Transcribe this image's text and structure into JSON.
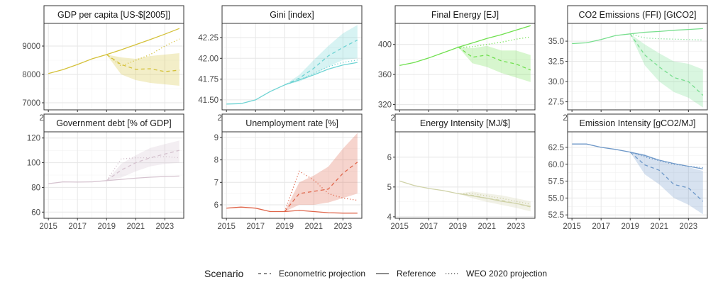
{
  "legend": {
    "title": "Scenario",
    "items": [
      {
        "label": "Econometric projection",
        "dash": "dashed"
      },
      {
        "label": "Reference",
        "dash": "solid"
      },
      {
        "label": "WEO 2020 projection",
        "dash": "dotted"
      }
    ]
  },
  "chart_data": [
    {
      "type": "line",
      "title": "GDP per capita [US-$[2005]]",
      "color": "#D4C13A",
      "ylim": [
        6750,
        9800
      ],
      "yticks": [
        7000,
        8000,
        9000
      ],
      "ytick_labels": [
        "7000",
        "8000",
        "9000"
      ],
      "xlim": [
        2014.7,
        2024.3
      ],
      "xticks": [
        2015,
        2017,
        2019,
        2021,
        2023
      ],
      "x": [
        2015,
        2016,
        2017,
        2018,
        2019,
        2020,
        2021,
        2022,
        2023,
        2024
      ],
      "reference": [
        8030,
        8170,
        8350,
        8550,
        8700,
        8870,
        9050,
        9230,
        9420,
        9620
      ],
      "econometric": {
        "x": [
          2019,
          2020,
          2021,
          2022,
          2023,
          2024
        ],
        "y": [
          8700,
          8350,
          8180,
          8200,
          8100,
          8150
        ],
        "lower": [
          8700,
          8000,
          7800,
          7700,
          7650,
          7600
        ],
        "upper": [
          8700,
          8600,
          8550,
          8650,
          8700,
          8750
        ]
      },
      "weo": {
        "x": [
          2019,
          2020,
          2021,
          2022,
          2023,
          2024
        ],
        "y": [
          8700,
          8300,
          8500,
          8700,
          9000,
          9250
        ]
      }
    },
    {
      "type": "line",
      "title": "Gini [index]",
      "color": "#6ED3D3",
      "ylim": [
        41.38,
        42.42
      ],
      "yticks": [
        41.5,
        41.75,
        42.0,
        42.25
      ],
      "ytick_labels": [
        "41.50",
        "41.75",
        "42.00",
        "42.25"
      ],
      "xlim": [
        2014.7,
        2024.3
      ],
      "xticks": [
        2015,
        2017,
        2019,
        2021,
        2023
      ],
      "x": [
        2015,
        2016,
        2017,
        2018,
        2019,
        2020,
        2021,
        2022,
        2023,
        2024
      ],
      "reference": [
        41.45,
        41.455,
        41.5,
        41.6,
        41.68,
        41.74,
        41.8,
        41.87,
        41.92,
        41.95
      ],
      "econometric": {
        "x": [
          2019,
          2020,
          2021,
          2022,
          2023,
          2024
        ],
        "y": [
          41.68,
          41.76,
          41.88,
          42.03,
          42.13,
          42.22
        ],
        "lower": [
          41.68,
          41.72,
          41.8,
          41.9,
          41.98,
          42.0
        ],
        "upper": [
          41.68,
          41.8,
          41.98,
          42.15,
          42.3,
          42.4
        ]
      },
      "weo": {
        "x": [
          2019,
          2020,
          2021,
          2022,
          2023,
          2024
        ],
        "y": [
          41.68,
          41.74,
          41.82,
          41.9,
          41.95,
          41.98
        ]
      }
    },
    {
      "type": "line",
      "title": "Final Energy [EJ]",
      "color": "#6FE04E",
      "ylim": [
        313,
        428
      ],
      "yticks": [
        320,
        360,
        400
      ],
      "ytick_labels": [
        "320",
        "360",
        "400"
      ],
      "xlim": [
        2014.7,
        2024.3
      ],
      "xticks": [
        2015,
        2017,
        2019,
        2021,
        2023
      ],
      "x": [
        2015,
        2016,
        2017,
        2018,
        2019,
        2020,
        2021,
        2022,
        2023,
        2024
      ],
      "reference": [
        372,
        376,
        382,
        389,
        396,
        402,
        408,
        413,
        419,
        425
      ],
      "econometric": {
        "x": [
          2019,
          2020,
          2021,
          2022,
          2023,
          2024
        ],
        "y": [
          397,
          383,
          386,
          378,
          374,
          366
        ],
        "lower": [
          397,
          375,
          370,
          362,
          356,
          350
        ],
        "upper": [
          397,
          395,
          398,
          392,
          392,
          386
        ]
      },
      "weo": {
        "x": [
          2019,
          2020,
          2021,
          2022,
          2023,
          2024
        ],
        "y": [
          396,
          397,
          400,
          403,
          407,
          410
        ]
      }
    },
    {
      "type": "line",
      "title": "CO2 Emissions (FFI) [GtCO2]",
      "color": "#78DE8E",
      "ylim": [
        26.5,
        37.2
      ],
      "yticks": [
        27.5,
        30.0,
        32.5,
        35.0
      ],
      "ytick_labels": [
        "27.5",
        "30.0",
        "32.5",
        "35.0"
      ],
      "xlim": [
        2014.7,
        2024.3
      ],
      "xticks": [
        2015,
        2017,
        2019,
        2021,
        2023
      ],
      "x": [
        2015,
        2016,
        2017,
        2018,
        2019,
        2020,
        2021,
        2022,
        2023,
        2024
      ],
      "reference": [
        34.7,
        34.8,
        35.2,
        35.7,
        35.9,
        36.1,
        36.2,
        36.35,
        36.45,
        36.55
      ],
      "econometric": {
        "x": [
          2019,
          2020,
          2021,
          2022,
          2023,
          2024
        ],
        "y": [
          35.9,
          33.3,
          31.8,
          30.5,
          30.0,
          28.3
        ],
        "lower": [
          35.9,
          32.0,
          30.0,
          28.7,
          28.0,
          26.8
        ],
        "upper": [
          35.9,
          34.6,
          33.5,
          32.5,
          32.2,
          31.5
        ]
      },
      "weo": {
        "x": [
          2019,
          2020,
          2021,
          2022,
          2023,
          2024
        ],
        "y": [
          35.9,
          35.4,
          35.3,
          35.25,
          35.2,
          35.15
        ]
      }
    },
    {
      "type": "line",
      "title": "Government debt [% of GDP]",
      "color": "#D5C3CF",
      "ylim": [
        55,
        125
      ],
      "yticks": [
        60,
        80,
        100,
        120
      ],
      "ytick_labels": [
        "60",
        "80",
        "100",
        "120"
      ],
      "xlim": [
        2014.7,
        2024.3
      ],
      "xticks": [
        2015,
        2017,
        2019,
        2021,
        2023
      ],
      "x": [
        2015,
        2016,
        2017,
        2018,
        2019,
        2020,
        2021,
        2022,
        2023,
        2024
      ],
      "reference": [
        83,
        84.5,
        84.3,
        84.5,
        85.5,
        86.5,
        87.5,
        88.3,
        88.8,
        89.2
      ],
      "econometric": {
        "x": [
          2019,
          2020,
          2021,
          2022,
          2023,
          2024
        ],
        "y": [
          85.5,
          94,
          100,
          104,
          107,
          110
        ],
        "lower": [
          85.5,
          88,
          93,
          97,
          99,
          100
        ],
        "upper": [
          85.5,
          99,
          106,
          112,
          115,
          118
        ]
      },
      "weo": {
        "x": [
          2019,
          2020,
          2021,
          2022,
          2023,
          2024
        ],
        "y": [
          85.5,
          103,
          104,
          104,
          105,
          104
        ]
      }
    },
    {
      "type": "line",
      "title": "Unemployment rate [%]",
      "color": "#E0664B",
      "ylim": [
        5.4,
        9.25
      ],
      "yticks": [
        6,
        7,
        8,
        9
      ],
      "ytick_labels": [
        "6",
        "7",
        "8",
        "9"
      ],
      "xlim": [
        2014.7,
        2024.3
      ],
      "xticks": [
        2015,
        2017,
        2019,
        2021,
        2023
      ],
      "x": [
        2015,
        2016,
        2017,
        2018,
        2019,
        2020,
        2021,
        2022,
        2023,
        2024
      ],
      "reference": [
        5.85,
        5.9,
        5.85,
        5.7,
        5.7,
        5.75,
        5.7,
        5.65,
        5.63,
        5.63
      ],
      "econometric": {
        "x": [
          2019,
          2020,
          2021,
          2022,
          2023,
          2024
        ],
        "y": [
          5.7,
          6.5,
          6.6,
          6.7,
          7.4,
          7.9
        ],
        "lower": [
          5.7,
          6.0,
          6.0,
          6.1,
          6.3,
          6.5
        ],
        "upper": [
          5.7,
          7.0,
          7.3,
          7.7,
          8.5,
          9.2
        ]
      },
      "weo": {
        "x": [
          2019,
          2020,
          2021,
          2022,
          2023,
          2024
        ],
        "y": [
          5.7,
          7.5,
          7.1,
          6.5,
          6.3,
          6.2
        ]
      }
    },
    {
      "type": "line",
      "title": "Energy Intensity [MJ/$]",
      "color": "#CFD2A8",
      "ylim": [
        3.95,
        6.85
      ],
      "yticks": [
        4,
        5,
        6
      ],
      "ytick_labels": [
        "4",
        "5",
        "6"
      ],
      "xlim": [
        2014.7,
        2024.3
      ],
      "xticks": [
        2015,
        2017,
        2019,
        2021,
        2023
      ],
      "x": [
        2015,
        2016,
        2017,
        2018,
        2019,
        2020,
        2021,
        2022,
        2023,
        2024
      ],
      "reference": [
        5.2,
        5.05,
        4.95,
        4.88,
        4.78,
        4.7,
        4.62,
        4.52,
        4.45,
        4.35
      ],
      "econometric": {
        "x": [
          2019,
          2020,
          2021,
          2022,
          2023,
          2024
        ],
        "y": [
          4.78,
          4.72,
          4.62,
          4.55,
          4.45,
          4.33
        ],
        "lower": [
          4.78,
          4.62,
          4.5,
          4.4,
          4.3,
          4.18
        ],
        "upper": [
          4.78,
          4.85,
          4.78,
          4.72,
          4.62,
          4.52
        ]
      },
      "weo": {
        "x": [
          2019,
          2020,
          2021,
          2022,
          2023,
          2024
        ],
        "y": [
          4.78,
          4.78,
          4.7,
          4.62,
          4.52,
          4.42
        ]
      }
    },
    {
      "type": "line",
      "title": "Emission Intensity [gCO2/MJ]",
      "color": "#6E98C8",
      "ylim": [
        52.0,
        64.8
      ],
      "yticks": [
        52.5,
        55.0,
        57.5,
        60.0,
        62.5
      ],
      "ytick_labels": [
        "52.5",
        "55.0",
        "57.5",
        "60.0",
        "62.5"
      ],
      "xlim": [
        2014.7,
        2024.3
      ],
      "xticks": [
        2015,
        2017,
        2019,
        2021,
        2023
      ],
      "x": [
        2015,
        2016,
        2017,
        2018,
        2019,
        2020,
        2021,
        2022,
        2023,
        2024
      ],
      "reference": [
        63.0,
        63.0,
        62.5,
        62.2,
        61.8,
        61.3,
        60.6,
        60.1,
        59.7,
        59.3
      ],
      "econometric": {
        "x": [
          2019,
          2020,
          2021,
          2022,
          2023,
          2024
        ],
        "y": [
          61.8,
          59.9,
          59.1,
          57.0,
          56.5,
          54.5
        ],
        "lower": [
          61.8,
          58.5,
          57.0,
          55.0,
          54.0,
          52.6
        ],
        "upper": [
          61.8,
          61.5,
          60.5,
          60.0,
          59.6,
          59.0
        ]
      },
      "weo": {
        "x": [
          2019,
          2020,
          2021,
          2022,
          2023,
          2024
        ],
        "y": [
          61.8,
          61.1,
          60.5,
          60.0,
          59.7,
          59.5
        ]
      }
    }
  ]
}
